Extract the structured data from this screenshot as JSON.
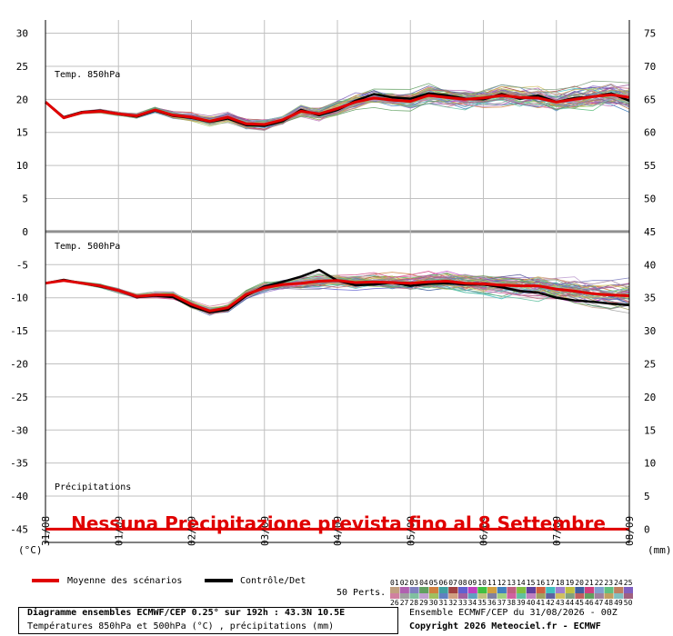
{
  "chart_data": {
    "type": "line",
    "title": "Diagramme ensembles ECMWF/CEP 0.25° sur 192h : 43.3N 10.5E",
    "subtitle": "Températures 850hPa et 500hPa (°C) , précipitations (mm)",
    "left_axis": {
      "label": "(°C)",
      "ticks": [
        "30",
        "25",
        "20",
        "15",
        "10",
        "5",
        "0",
        "-5",
        "-10",
        "-15",
        "-20",
        "-25",
        "-30",
        "-35",
        "-40",
        "-45"
      ],
      "ylim": [
        -47,
        32
      ]
    },
    "right_axis": {
      "label": "(mm)",
      "ticks": [
        "75",
        "70",
        "65",
        "60",
        "55",
        "50",
        "45",
        "40",
        "35",
        "30",
        "25",
        "20",
        "15",
        "10",
        "5",
        "0"
      ]
    },
    "x_ticks": [
      "31/08",
      "01/09",
      "02/09",
      "03/09",
      "04/09",
      "05/09",
      "06/09",
      "07/09",
      "08/09"
    ],
    "panel_labels": {
      "t850": "Temp. 850hPa",
      "t500": "Temp. 500hPa",
      "precip": "Précipitations"
    },
    "x_hours": [
      0,
      6,
      12,
      18,
      24,
      30,
      36,
      42,
      48,
      54,
      60,
      66,
      72,
      78,
      84,
      90,
      96,
      102,
      108,
      114,
      120,
      126,
      132,
      138,
      144,
      150,
      156,
      162,
      168,
      174,
      180,
      186,
      192
    ],
    "series": [
      {
        "name": "Moyenne des scénarios",
        "panel": "t850",
        "values": [
          19.6,
          17.2,
          18.0,
          18.2,
          17.8,
          17.5,
          18.4,
          17.6,
          17.3,
          16.7,
          17.3,
          16.3,
          16.2,
          16.9,
          18.2,
          17.8,
          18.6,
          19.6,
          20.2,
          19.9,
          19.7,
          20.6,
          20.3,
          20.0,
          20.2,
          20.6,
          20.3,
          20.2,
          19.6,
          20.0,
          20.4,
          20.7,
          20.3
        ]
      },
      {
        "name": "Contrôle/Det",
        "panel": "t850",
        "values": [
          19.6,
          17.3,
          18.1,
          18.3,
          17.8,
          17.4,
          18.3,
          17.5,
          17.2,
          16.6,
          17.1,
          16.1,
          16.0,
          16.7,
          18.4,
          17.6,
          18.4,
          19.8,
          20.8,
          20.3,
          20.1,
          20.9,
          20.6,
          20.1,
          20.0,
          20.8,
          20.1,
          20.6,
          19.6,
          20.2,
          20.4,
          20.9,
          19.8
        ]
      },
      {
        "name": "Moyenne des scénarios",
        "panel": "t500",
        "values": [
          -7.8,
          -7.4,
          -7.8,
          -8.2,
          -8.9,
          -9.8,
          -9.6,
          -9.6,
          -11.0,
          -12.0,
          -11.5,
          -9.5,
          -8.5,
          -8.0,
          -7.8,
          -7.5,
          -7.4,
          -7.7,
          -7.6,
          -7.7,
          -7.8,
          -7.6,
          -7.5,
          -7.8,
          -7.9,
          -8.1,
          -8.2,
          -8.2,
          -8.7,
          -9.0,
          -9.4,
          -9.6,
          -9.7
        ]
      },
      {
        "name": "Contrôle/Det",
        "panel": "t500",
        "values": [
          -7.8,
          -7.3,
          -7.8,
          -8.3,
          -8.9,
          -9.9,
          -9.7,
          -9.9,
          -11.3,
          -12.2,
          -11.8,
          -9.7,
          -8.3,
          -7.6,
          -6.8,
          -5.8,
          -7.4,
          -8.1,
          -8.0,
          -7.7,
          -8.2,
          -7.9,
          -7.8,
          -8.0,
          -8.0,
          -8.4,
          -9.0,
          -9.2,
          -10.0,
          -10.4,
          -10.6,
          -10.9,
          -11.1
        ]
      },
      {
        "name": "Moyenne des scénarios",
        "panel": "precip",
        "values": [
          0,
          0,
          0,
          0,
          0,
          0,
          0,
          0,
          0,
          0,
          0,
          0,
          0,
          0,
          0,
          0,
          0,
          0,
          0,
          0,
          0,
          0,
          0,
          0,
          0,
          0,
          0,
          0,
          0,
          0,
          0,
          0,
          0
        ]
      }
    ],
    "legend": {
      "mean": "Moyenne des scénarios",
      "control": "Contrôle/Det",
      "perts_label": "50 Perts."
    },
    "pert_numbers_top": [
      "01",
      "02",
      "03",
      "04",
      "05",
      "06",
      "07",
      "08",
      "09",
      "10",
      "11",
      "12",
      "13",
      "14",
      "15",
      "16",
      "17",
      "18",
      "19",
      "20",
      "21",
      "22",
      "23",
      "24",
      "25"
    ],
    "pert_numbers_bottom": [
      "26",
      "27",
      "28",
      "29",
      "30",
      "31",
      "32",
      "33",
      "34",
      "35",
      "36",
      "37",
      "38",
      "39",
      "40",
      "41",
      "42",
      "43",
      "44",
      "45",
      "46",
      "47",
      "48",
      "49",
      "50"
    ],
    "pert_colors": [
      "#c0a080",
      "#b060b0",
      "#8080c0",
      "#60a060",
      "#d08040",
      "#40a0a0",
      "#a04040",
      "#6060d0",
      "#c040c0",
      "#40c040",
      "#d0a040",
      "#4080c0",
      "#c06080",
      "#80c040",
      "#6040a0",
      "#d06040",
      "#40c0c0",
      "#a080d0",
      "#c0c040",
      "#4060a0",
      "#d04080",
      "#80a0d0",
      "#60c080",
      "#c08060",
      "#8060c0"
    ],
    "pert_colors_bottom": [
      "#d080a0",
      "#a0a0a0",
      "#80c0a0",
      "#c0a0d0",
      "#a0c060",
      "#6080c0",
      "#d0a080",
      "#a060a0",
      "#60a0c0",
      "#c0c080",
      "#8080a0",
      "#a0d080",
      "#d060a0",
      "#60c0a0",
      "#c080c0",
      "#a0a060",
      "#6060a0",
      "#d0c060",
      "#80a080",
      "#c06060",
      "#60a060",
      "#a080a0",
      "#c0a060",
      "#80c0c0",
      "#a06080"
    ],
    "annotation": "Nessuna Precipitazione prevista fino al 8 Settembre",
    "colors": {
      "mean": "#e00000",
      "control": "#000000",
      "grid": "#c0c0c0",
      "banner": "#e00000"
    }
  },
  "footer": {
    "title": "Diagramme ensembles ECMWF/CEP 0.25° sur 192h : 43.3N 10.5E",
    "subtitle": "Températures 850hPa et 500hPa (°C) , précipitations (mm)",
    "run": "Ensemble ECMWF/CEP du 31/08/2026 - 00Z",
    "copyright": "Copyright 2026 Meteociel.fr - ECMWF"
  }
}
